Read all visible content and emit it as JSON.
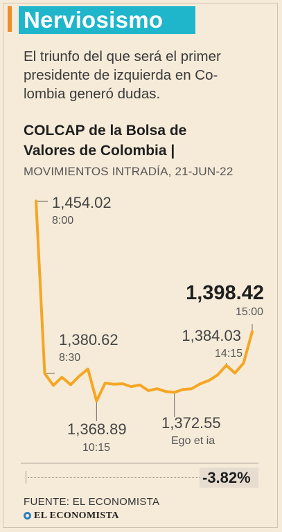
{
  "header": {
    "title": "Nerviosismo",
    "subtitle_lines": [
      "El triunfo del que será el primer",
      "presidente de izquierda en Co-",
      "lombia generó dudas."
    ],
    "accent_color": "#1fb6cc",
    "bar_color": "#f28c28"
  },
  "chart_data": {
    "type": "line",
    "title_lines": [
      "COLCAP de la Bolsa de",
      "Valores de Colombia |"
    ],
    "subtitle": "MOVIMIENTOS INTRADÍA, 21-JUN-22",
    "line_color": "#f5a623",
    "x": [
      "8:00",
      "8:30",
      "",
      "",
      "",
      "",
      "",
      "10:15",
      "",
      "",
      "",
      "",
      "",
      "",
      "",
      "",
      "Ego et ia",
      "",
      "",
      "",
      "",
      "",
      "14:15",
      "",
      "",
      "15:00"
    ],
    "values": [
      1454.02,
      1380.62,
      1375.5,
      1379.0,
      1375.8,
      1379.5,
      1382.5,
      1368.89,
      1376.5,
      1376.0,
      1376.2,
      1375.0,
      1375.7,
      1373.3,
      1374.1,
      1372.9,
      1372.55,
      1373.8,
      1374.1,
      1376.2,
      1377.6,
      1380.0,
      1384.03,
      1380.8,
      1385.0,
      1398.42
    ],
    "annotations": [
      {
        "index": 0,
        "value": "1,454.02",
        "time": "8:00",
        "emphasis": false
      },
      {
        "index": 1,
        "value": "1,380.62",
        "time": "8:30",
        "emphasis": false
      },
      {
        "index": 7,
        "value": "1,368.89",
        "time": "10:15",
        "emphasis": false
      },
      {
        "index": 16,
        "value": "1,372.55",
        "time": "Ego et ia",
        "emphasis": false
      },
      {
        "index": 22,
        "value": "1,384.03",
        "time": "14:15",
        "emphasis": false
      },
      {
        "index": 25,
        "value": "1,398.42",
        "time": "15:00",
        "emphasis": true
      }
    ],
    "change": "-3.82%",
    "ylim": [
      1365,
      1455
    ],
    "grid": false,
    "legend": "none"
  },
  "footer": {
    "source": "FUENTE: EL ECONOMISTA",
    "logo_text": "EL ECONOMISTA"
  }
}
